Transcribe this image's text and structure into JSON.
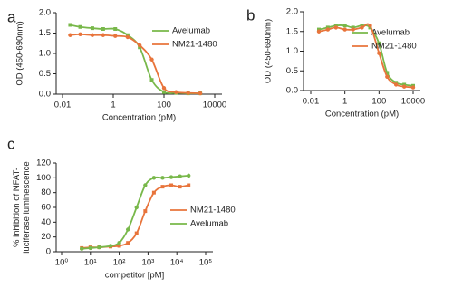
{
  "chart_data": [
    {
      "type": "scatter",
      "panel_label": "a",
      "xlabel": "Concentration (pM)",
      "ylabel": [
        "OD (450-690nm)"
      ],
      "xscale": "log",
      "xlim": [
        0.01,
        10000
      ],
      "ylim": [
        0,
        2
      ],
      "xticks": [
        0.01,
        1,
        100,
        10000
      ],
      "yticks": [
        {
          "value": 0,
          "label": "0.0"
        },
        0.5,
        {
          "value": 1,
          "label": "1.0"
        },
        1.5,
        {
          "value": 2,
          "label": "2.0"
        }
      ],
      "legend": "upper right",
      "series": [
        {
          "name": "Avelumab",
          "color": "#78b84a",
          "x": [
            0.02,
            0.05,
            0.15,
            0.4,
            1.2,
            3.7,
            11,
            33,
            100,
            300,
            900,
            2700
          ],
          "values": [
            1.7,
            1.65,
            1.62,
            1.6,
            1.6,
            1.45,
            1.15,
            0.35,
            0.05,
            0.03,
            0.02,
            0.02
          ]
        },
        {
          "name": "NM21-1480",
          "color": "#e8743b",
          "x": [
            0.02,
            0.05,
            0.15,
            0.4,
            1.2,
            3.7,
            11,
            33,
            100,
            300,
            900,
            2700
          ],
          "values": [
            1.45,
            1.47,
            1.45,
            1.45,
            1.43,
            1.4,
            1.2,
            0.85,
            0.15,
            0.05,
            0.03,
            0.02
          ]
        }
      ]
    },
    {
      "type": "scatter",
      "panel_label": "b",
      "xlabel": "Concentration (pM)",
      "ylabel": [
        "OD (450-690nm)"
      ],
      "xscale": "log",
      "xlim": [
        0.01,
        10000
      ],
      "ylim": [
        0,
        2
      ],
      "xticks": [
        0.01,
        1,
        100,
        10000
      ],
      "yticks": [
        {
          "value": 0,
          "label": "0.0"
        },
        0.5,
        {
          "value": 1,
          "label": "1.0"
        },
        1.5,
        {
          "value": 2,
          "label": "2.0"
        }
      ],
      "legend": "upper right",
      "series": [
        {
          "name": "Avelumab",
          "color": "#78b84a",
          "x": [
            0.03,
            0.1,
            0.3,
            1,
            3,
            10,
            30,
            100,
            300,
            1000,
            3000,
            10000
          ],
          "values": [
            1.55,
            1.6,
            1.65,
            1.65,
            1.6,
            1.65,
            1.6,
            1.2,
            0.45,
            0.2,
            0.15,
            0.12
          ]
        },
        {
          "name": "NM21-1480",
          "color": "#e8743b",
          "x": [
            0.03,
            0.1,
            0.3,
            1,
            3,
            10,
            30,
            100,
            300,
            1000,
            3000,
            10000
          ],
          "values": [
            1.5,
            1.55,
            1.6,
            1.55,
            1.55,
            1.6,
            1.65,
            0.95,
            0.35,
            0.15,
            0.1,
            0.08
          ]
        }
      ]
    },
    {
      "type": "scatter",
      "panel_label": "c",
      "xlabel": "competitor [pM]",
      "ylabel": [
        "% inhibition of NFAT-",
        "luciferase luminescence"
      ],
      "xscale": "log",
      "xlim": [
        1,
        100000
      ],
      "ylim": [
        0,
        120
      ],
      "xticks": [
        {
          "value": 1,
          "label": "10⁰"
        },
        {
          "value": 10,
          "label": "10¹"
        },
        {
          "value": 100,
          "label": "10²"
        },
        {
          "value": 1000,
          "label": "10³"
        },
        {
          "value": 10000,
          "label": "10⁴"
        },
        {
          "value": 100000,
          "label": "10⁵"
        }
      ],
      "yticks": [
        0,
        20,
        40,
        60,
        80,
        100,
        120
      ],
      "legend": "center right",
      "series": [
        {
          "name": "NM21-1480",
          "color": "#e8743b",
          "x": [
            5,
            10,
            20,
            50,
            100,
            200,
            400,
            800,
            1600,
            3200,
            6400,
            12800,
            25600
          ],
          "values": [
            5,
            6,
            6,
            7,
            8,
            12,
            25,
            55,
            80,
            88,
            90,
            88,
            90
          ]
        },
        {
          "name": "Avelumab",
          "color": "#78b84a",
          "x": [
            5,
            10,
            20,
            50,
            100,
            200,
            400,
            800,
            1600,
            3200,
            6400,
            12800,
            25600
          ],
          "values": [
            4,
            5,
            6,
            8,
            12,
            30,
            60,
            90,
            100,
            100,
            101,
            102,
            103
          ]
        }
      ]
    }
  ]
}
